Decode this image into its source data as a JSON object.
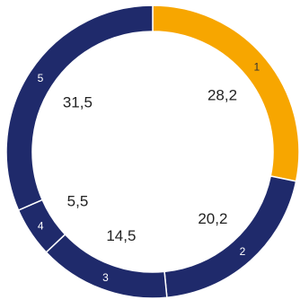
{
  "chart_data": {
    "type": "pie",
    "variant": "donut",
    "start_angle_deg": 0,
    "direction": "clockwise",
    "legend": "none",
    "slices": [
      {
        "index_label": "1",
        "value": 28.2,
        "value_label": "28,2",
        "color": "#F7A600"
      },
      {
        "index_label": "2",
        "value": 20.2,
        "value_label": "20,2",
        "color": "#1F2A6B"
      },
      {
        "index_label": "3",
        "value": 14.5,
        "value_label": "14,5",
        "color": "#1F2A6B"
      },
      {
        "index_label": "4",
        "value": 5.5,
        "value_label": "5,5",
        "color": "#1F2A6B"
      },
      {
        "index_label": "5",
        "value": 31.5,
        "value_label": "31,5",
        "color": "#1F2A6B"
      }
    ]
  }
}
